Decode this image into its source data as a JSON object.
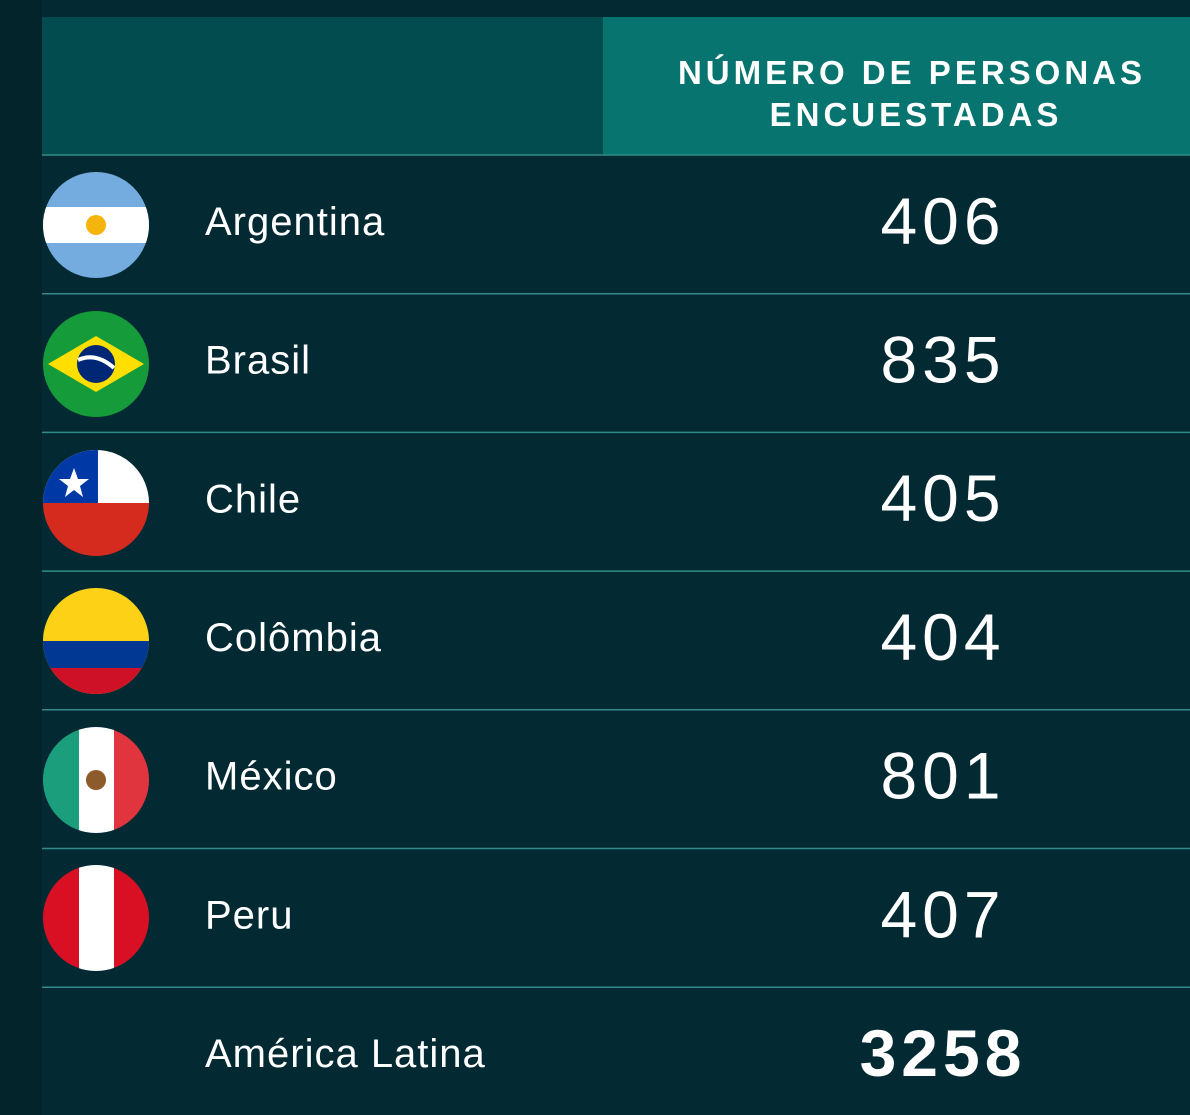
{
  "header": {
    "column": [
      "NÚMERO DE PERSONAS",
      "ENCUESTADAS"
    ]
  },
  "rows": [
    {
      "country": "Argentina",
      "count": 406
    },
    {
      "country": "Brasil",
      "count": 835
    },
    {
      "country": "Chile",
      "count": 405
    },
    {
      "country": "Colômbia",
      "count": 404
    },
    {
      "country": "México",
      "count": 801
    },
    {
      "country": "Peru",
      "count": 407
    }
  ],
  "total": {
    "label": "América Latina",
    "count": 3258
  }
}
